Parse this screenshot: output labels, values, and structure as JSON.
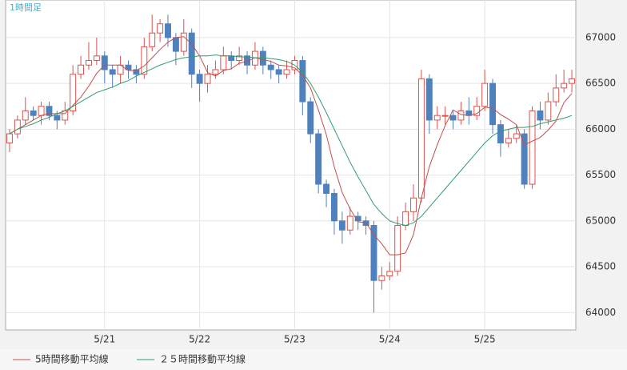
{
  "chart_data": {
    "type": "candlestick",
    "title": "1時間足",
    "categories": [
      null,
      null,
      null,
      null,
      null,
      null,
      null,
      null,
      null,
      null,
      null,
      null,
      "5/21",
      null,
      null,
      null,
      null,
      null,
      null,
      null,
      null,
      null,
      null,
      null,
      "5/22",
      null,
      null,
      null,
      null,
      null,
      null,
      null,
      null,
      null,
      null,
      null,
      "5/23",
      null,
      null,
      null,
      null,
      null,
      null,
      null,
      null,
      null,
      null,
      null,
      "5/24",
      null,
      null,
      null,
      null,
      null,
      null,
      null,
      null,
      null,
      null,
      null,
      "5/25",
      null,
      null,
      null,
      null,
      null,
      null,
      null,
      null,
      null,
      null,
      null
    ],
    "open": [
      65850,
      65950,
      66100,
      66200,
      66150,
      66250,
      66150,
      66100,
      66200,
      66600,
      66700,
      66750,
      66800,
      66650,
      66600,
      66700,
      66650,
      66600,
      66900,
      67050,
      67150,
      67000,
      66850,
      67050,
      66600,
      66500,
      66600,
      66650,
      66800,
      66750,
      66800,
      66700,
      66850,
      66700,
      66650,
      66600,
      66650,
      66750,
      66300,
      65950,
      65400,
      65300,
      65000,
      64900,
      65050,
      65000,
      64950,
      64350,
      64400,
      64450,
      64950,
      65100,
      65250,
      66550,
      66100,
      66150,
      66150,
      66100,
      66200,
      66150,
      66250,
      66500,
      66050,
      65850,
      65900,
      65950,
      65400,
      66200,
      66100,
      66300,
      66450,
      66500
    ],
    "high": [
      66000,
      66150,
      66350,
      66250,
      66300,
      66300,
      66200,
      66300,
      66700,
      66800,
      66950,
      67000,
      66850,
      66700,
      66800,
      66750,
      66700,
      67000,
      67250,
      67200,
      67250,
      67050,
      67200,
      67100,
      66650,
      66700,
      66750,
      66900,
      66850,
      66900,
      66850,
      66950,
      66900,
      66750,
      66700,
      66750,
      66800,
      66800,
      66350,
      66000,
      65450,
      65350,
      65100,
      65150,
      65100,
      65050,
      65000,
      64500,
      64550,
      65050,
      65200,
      65400,
      66650,
      66600,
      66250,
      66250,
      66200,
      66300,
      66350,
      66350,
      66650,
      66550,
      66100,
      66000,
      66050,
      66000,
      66250,
      66300,
      66400,
      66600,
      66650,
      66650
    ],
    "low": [
      65750,
      65900,
      66050,
      66100,
      66050,
      66100,
      66000,
      66050,
      66150,
      66550,
      66650,
      66700,
      66500,
      66450,
      66500,
      66550,
      66500,
      66550,
      66850,
      66950,
      66900,
      66700,
      66800,
      66450,
      66300,
      66400,
      66550,
      66600,
      66650,
      66700,
      66600,
      66650,
      66600,
      66550,
      66500,
      66550,
      66600,
      66150,
      65850,
      65300,
      65150,
      64850,
      64750,
      64850,
      64900,
      64850,
      64000,
      64250,
      64350,
      64400,
      64900,
      65000,
      65200,
      65950,
      66000,
      66050,
      66000,
      66050,
      66050,
      66100,
      66200,
      65950,
      65700,
      65800,
      65850,
      65350,
      65350,
      66000,
      66050,
      66250,
      66400,
      66400
    ],
    "close": [
      65950,
      66100,
      66200,
      66150,
      66250,
      66150,
      66100,
      66200,
      66600,
      66700,
      66750,
      66800,
      66650,
      66600,
      66700,
      66650,
      66600,
      66900,
      67050,
      67150,
      67000,
      66850,
      67050,
      66600,
      66500,
      66600,
      66650,
      66800,
      66750,
      66800,
      66700,
      66850,
      66700,
      66650,
      66600,
      66650,
      66750,
      66300,
      65950,
      65400,
      65300,
      65000,
      64900,
      65050,
      65000,
      64950,
      64350,
      64400,
      64450,
      64950,
      65100,
      65250,
      66550,
      66100,
      66150,
      66150,
      66100,
      66200,
      66150,
      66250,
      66500,
      66050,
      65850,
      65900,
      65950,
      65400,
      66200,
      66100,
      66300,
      66450,
      66500,
      66550
    ],
    "up_color": "#d9534f",
    "down_color": "#4f81bd",
    "series": [
      {
        "name": "5時間移動平均線",
        "color": "#c0504d",
        "values": [
          65950,
          66000,
          66050,
          66100,
          66150,
          66170,
          66170,
          66170,
          66260,
          66350,
          66470,
          66610,
          66700,
          66700,
          66700,
          66640,
          66640,
          66690,
          66780,
          66870,
          66950,
          67000,
          67010,
          66930,
          66800,
          66620,
          66580,
          66640,
          66660,
          66720,
          66740,
          66780,
          66760,
          66740,
          66700,
          66690,
          66670,
          66590,
          66450,
          66210,
          65940,
          65590,
          65310,
          65130,
          64990,
          64980,
          64850,
          64750,
          64630,
          64630,
          64650,
          64850,
          65250,
          65590,
          65830,
          66040,
          66210,
          66160,
          66150,
          66170,
          66240,
          66230,
          66160,
          66110,
          66050,
          65830,
          65870,
          65910,
          65990,
          66090,
          66290,
          66390
        ]
      },
      {
        "name": "２５時間移動平均線",
        "color": "#2e9e6e",
        "values": [
          65950,
          66000,
          66030,
          66060,
          66100,
          66130,
          66170,
          66200,
          66250,
          66300,
          66350,
          66400,
          66430,
          66460,
          66500,
          66530,
          66580,
          66620,
          66660,
          66700,
          66730,
          66760,
          66780,
          66790,
          66800,
          66800,
          66810,
          66800,
          66800,
          66790,
          66790,
          66780,
          66780,
          66770,
          66760,
          66740,
          66700,
          66620,
          66500,
          66350,
          66180,
          66000,
          65820,
          65640,
          65480,
          65330,
          65180,
          65080,
          65000,
          64970,
          64950,
          64980,
          65050,
          65150,
          65250,
          65350,
          65450,
          65550,
          65650,
          65750,
          65850,
          65930,
          65980,
          66000,
          66020,
          66020,
          66030,
          66060,
          66080,
          66100,
          66120,
          66150
        ]
      }
    ],
    "ylim": [
      63810,
      67410
    ],
    "yticks": [
      64000,
      64500,
      65000,
      65500,
      66000,
      66500,
      67000
    ],
    "grid": true
  }
}
